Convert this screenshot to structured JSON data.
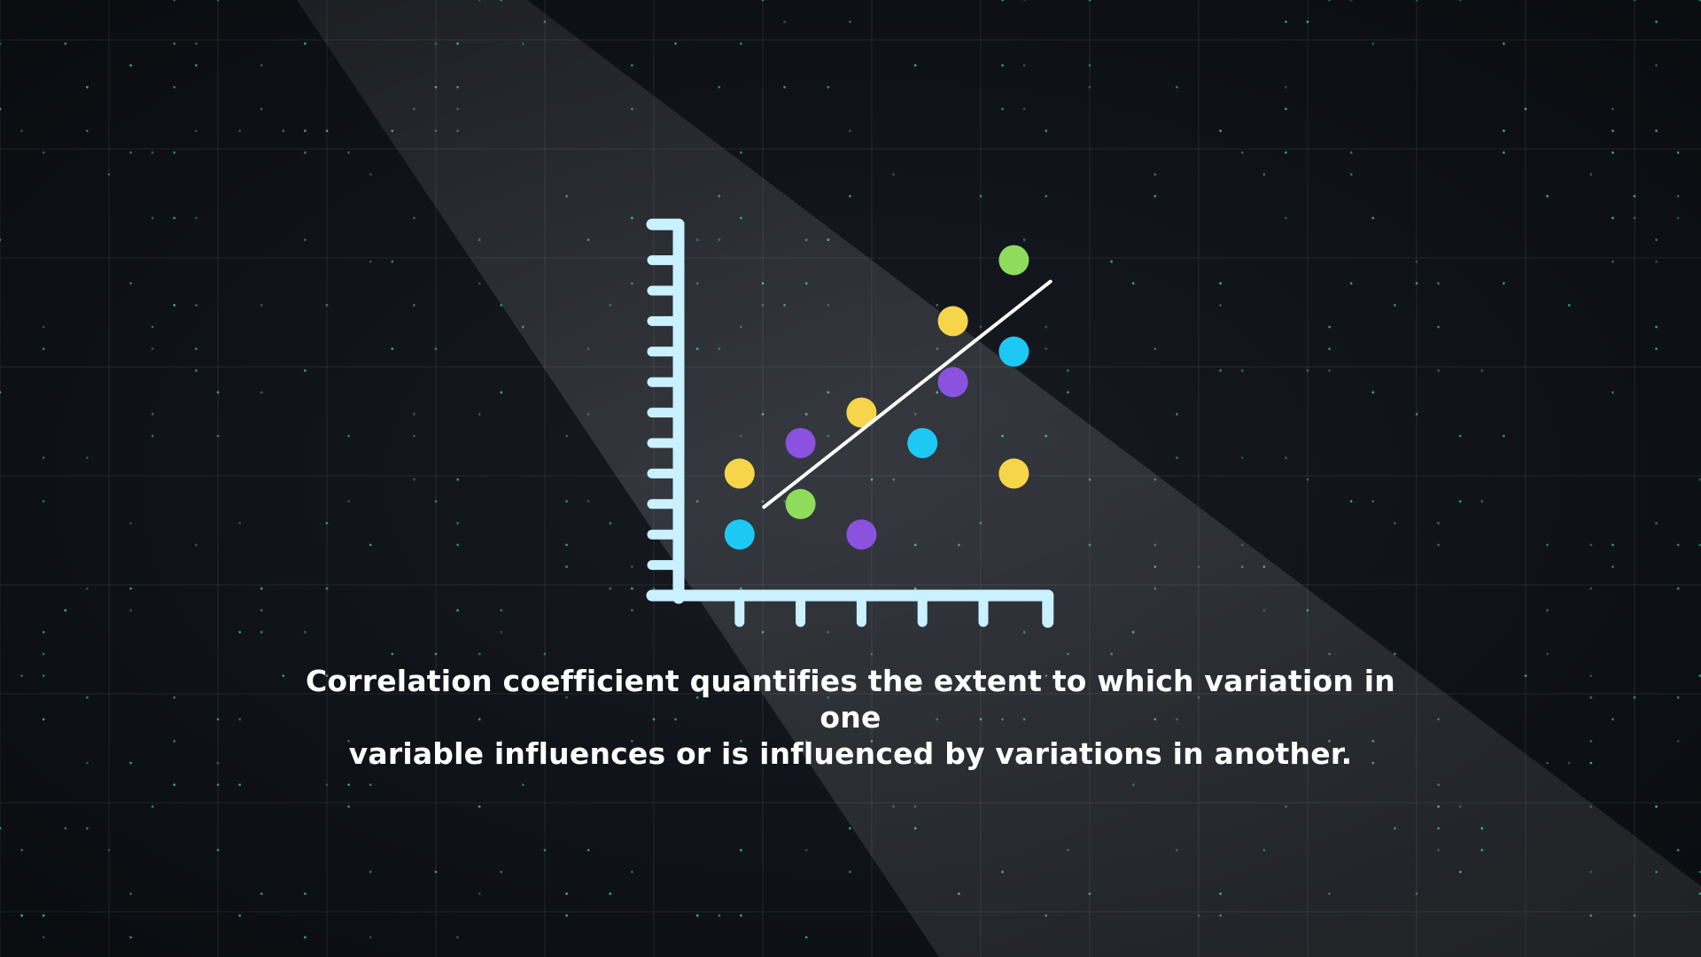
{
  "caption": {
    "line1": "Correlation coefficient quantifies the extent to which variation in one",
    "line2": "variable influences or is influenced by variations in another."
  },
  "colors": {
    "axis": "#c9f1ff",
    "trend": "#ffffff",
    "yellow": "#f7d54a",
    "cyan": "#1ec8f5",
    "purple": "#8b52e0",
    "green": "#8fdc5c",
    "grid_dot": "#35c9a0"
  },
  "chart_data": {
    "type": "scatter",
    "title": "",
    "xlabel": "",
    "ylabel": "",
    "grid": false,
    "xlim": [
      0,
      12
    ],
    "ylim": [
      0,
      24
    ],
    "x_ticks": 6,
    "y_ticks": 12,
    "points": [
      {
        "x": 2,
        "y": 4,
        "color": "cyan"
      },
      {
        "x": 2,
        "y": 8,
        "color": "yellow"
      },
      {
        "x": 4,
        "y": 6,
        "color": "green"
      },
      {
        "x": 4,
        "y": 10,
        "color": "purple"
      },
      {
        "x": 6,
        "y": 4,
        "color": "purple"
      },
      {
        "x": 6,
        "y": 12,
        "color": "yellow"
      },
      {
        "x": 8,
        "y": 10,
        "color": "cyan"
      },
      {
        "x": 9,
        "y": 14,
        "color": "purple"
      },
      {
        "x": 9,
        "y": 18,
        "color": "yellow"
      },
      {
        "x": 11,
        "y": 8,
        "color": "yellow"
      },
      {
        "x": 11,
        "y": 16,
        "color": "cyan"
      },
      {
        "x": 11,
        "y": 22,
        "color": "green"
      }
    ],
    "trendline": {
      "x": [
        2.8,
        12.2
      ],
      "y": [
        5.8,
        20.6
      ]
    }
  }
}
